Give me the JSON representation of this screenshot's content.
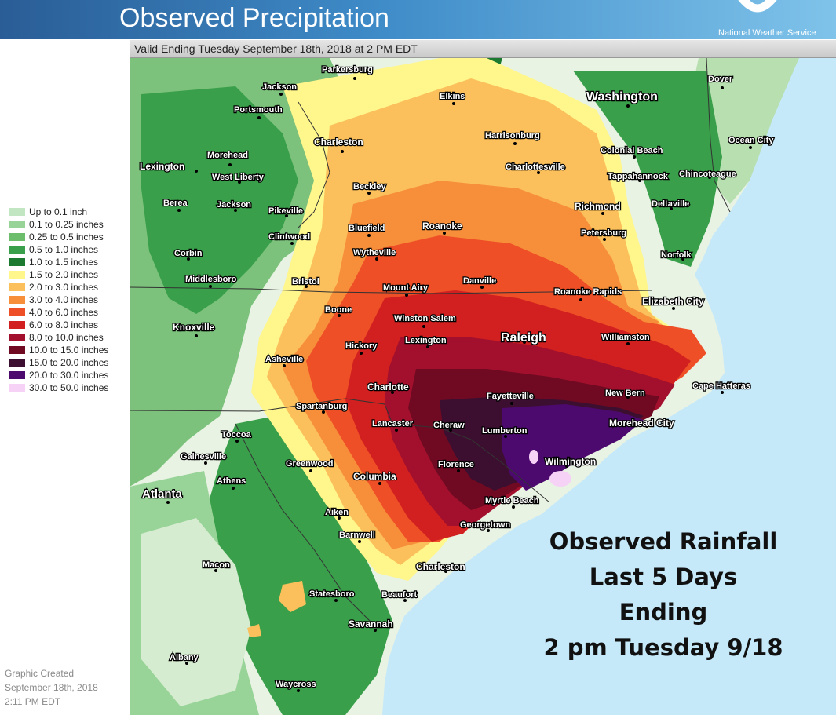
{
  "header": {
    "title": "Observed Precipitation",
    "agency": "National Weather Service"
  },
  "valid_text": "Valid Ending Tuesday September 18th, 2018 at 2 PM EDT",
  "legend": [
    {
      "label": "Up to 0.1 inch",
      "color": "#c2e5c2"
    },
    {
      "label": "0.1 to 0.25 inches",
      "color": "#98d398"
    },
    {
      "label": "0.25 to 0.5 inches",
      "color": "#6cbd6c"
    },
    {
      "label": "0.5 to 1.0 inches",
      "color": "#3a9f4a"
    },
    {
      "label": "1.0 to 1.5 inches",
      "color": "#1c7a30"
    },
    {
      "label": "1.5 to 2.0 inches",
      "color": "#fff68c"
    },
    {
      "label": "2.0 to 3.0 inches",
      "color": "#fbc05b"
    },
    {
      "label": "3.0 to 4.0 inches",
      "color": "#f78f3a"
    },
    {
      "label": "4.0 to 6.0 inches",
      "color": "#ef4f27"
    },
    {
      "label": "6.0 to 8.0 inches",
      "color": "#d1201f"
    },
    {
      "label": "8.0 to 10.0 inches",
      "color": "#a3102d"
    },
    {
      "label": "10.0 to 15.0 inches",
      "color": "#700a22"
    },
    {
      "label": "15.0 to 20.0 inches",
      "color": "#3c0f30"
    },
    {
      "label": "20.0 to 30.0 inches",
      "color": "#4c0a6e"
    },
    {
      "label": "30.0 to 50.0 inches",
      "color": "#f6d3f6"
    }
  ],
  "credit": [
    "Graphic Created",
    "September 18th, 2018",
    "2:11 PM EDT"
  ],
  "overlay": [
    "Observed Rainfall",
    "Last 5 Days",
    "Ending",
    "2 pm Tuesday 9/18"
  ],
  "cities": [
    "Parkersburg",
    "Jackson",
    "Portsmouth",
    "Elkins",
    "Washington",
    "Dover",
    "Charleston",
    "Harrisonburg",
    "Colonial Beach",
    "Ocean City",
    "Morehead",
    "Lexington",
    "West Liberty",
    "Charlottesville",
    "Tappahannock",
    "Chincoteague",
    "Beckley",
    "Berea",
    "Jackson",
    "Pikeville",
    "Richmond",
    "Deltaville",
    "Clintwood",
    "Bluefield",
    "Roanoke",
    "Petersburg",
    "Corbin",
    "Wytheville",
    "Norfolk",
    "Middlesboro",
    "Bristol",
    "Danville",
    "Mount Airy",
    "Roanoke Rapids",
    "Elizabeth City",
    "Boone",
    "Winston Salem",
    "Knoxville",
    "Raleigh",
    "Lexington",
    "Williamston",
    "Hickory",
    "Asheville",
    "Charlotte",
    "Cape Hatteras",
    "Fayetteville",
    "New Bern",
    "Spartanburg",
    "Lancaster",
    "Cheraw",
    "Lumberton",
    "Morehead City",
    "Toccoa",
    "Gainesville",
    "Greenwood",
    "Wilmington",
    "Florence",
    "Athens",
    "Columbia",
    "Atlanta",
    "Myrtle Beach",
    "Aiken",
    "Georgetown",
    "Barnwell",
    "Charleston",
    "Macon",
    "Statesboro",
    "Beaufort",
    "Savannah",
    "Albany",
    "Waycross"
  ]
}
